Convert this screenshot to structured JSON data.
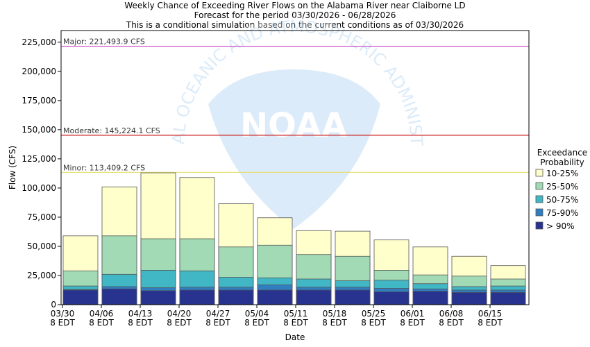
{
  "chart_data": {
    "type": "bar",
    "stacked": true,
    "title": "Weekly Chance of Exceeding River Flows on the Alabama River near Claiborne LD",
    "subtitle": "Forecast for the period 03/30/2026 - 06/28/2026",
    "subtitle2": "This is a conditional simulation based on the current conditions as of 03/30/2026",
    "xlabel": "Date",
    "ylabel": "Flow (CFS)",
    "ylim": [
      0,
      235000
    ],
    "yticks": [
      0,
      25000,
      50000,
      75000,
      100000,
      125000,
      150000,
      175000,
      200000,
      225000
    ],
    "ytick_labels": [
      "0",
      "25,000",
      "50,000",
      "75,000",
      "100,000",
      "125,000",
      "150,000",
      "175,000",
      "200,000",
      "225,000"
    ],
    "categories": [
      "03/30",
      "04/06",
      "04/13",
      "04/20",
      "04/27",
      "05/04",
      "05/11",
      "05/18",
      "05/25",
      "06/01",
      "06/08",
      "06/15"
    ],
    "xtick_labels": [
      "03/30",
      "04/06",
      "04/13",
      "04/20",
      "04/27",
      "05/04",
      "05/11",
      "05/18",
      "05/25",
      "06/01",
      "06/08",
      "06/15"
    ],
    "xtick_sublabel": "8 EDT",
    "legend_title": "Exceedance Probability",
    "legend_title_lines": [
      "Exceedance",
      "Probability"
    ],
    "legend_position": "right",
    "series": [
      {
        "name": "> 90%",
        "color": "#27338e",
        "values": [
          12500,
          13500,
          12000,
          12500,
          12500,
          12500,
          12500,
          12500,
          11000,
          11500,
          10500,
          10500
        ]
      },
      {
        "name": "75-90%",
        "color": "#2f7fc0",
        "values": [
          13000,
          15500,
          14500,
          15000,
          15000,
          17000,
          15000,
          15000,
          14000,
          13500,
          12500,
          12500
        ]
      },
      {
        "name": "50-75%",
        "color": "#41b6c4",
        "values": [
          16000,
          26000,
          29500,
          29000,
          23500,
          23000,
          22000,
          20500,
          21000,
          18000,
          15500,
          16000
        ]
      },
      {
        "name": "25-50%",
        "color": "#a1dab4",
        "values": [
          29000,
          59000,
          56500,
          56500,
          49500,
          51000,
          43000,
          41500,
          29500,
          25500,
          24500,
          22000
        ]
      },
      {
        "name": "10-25%",
        "color": "#ffffcc",
        "values": [
          59000,
          101000,
          113000,
          109000,
          86500,
          74500,
          63500,
          63000,
          55500,
          49500,
          41500,
          33500
        ]
      }
    ],
    "thresholds": [
      {
        "label": "Major: 221,493.9 CFS",
        "value": 221493.9,
        "color": "#c040c0"
      },
      {
        "label": "Moderate: 145,224.1 CFS",
        "value": 145224.1,
        "color": "#cc2222"
      },
      {
        "label": "Minor: 113,409.2 CFS",
        "value": 113409.2,
        "color": "#e6e07a"
      }
    ],
    "watermark_text": "NATIONAL OCEANIC AND ATMOSPHERIC ADMINISTRATION",
    "watermark_logo_text": "NOAA",
    "grid": false
  }
}
